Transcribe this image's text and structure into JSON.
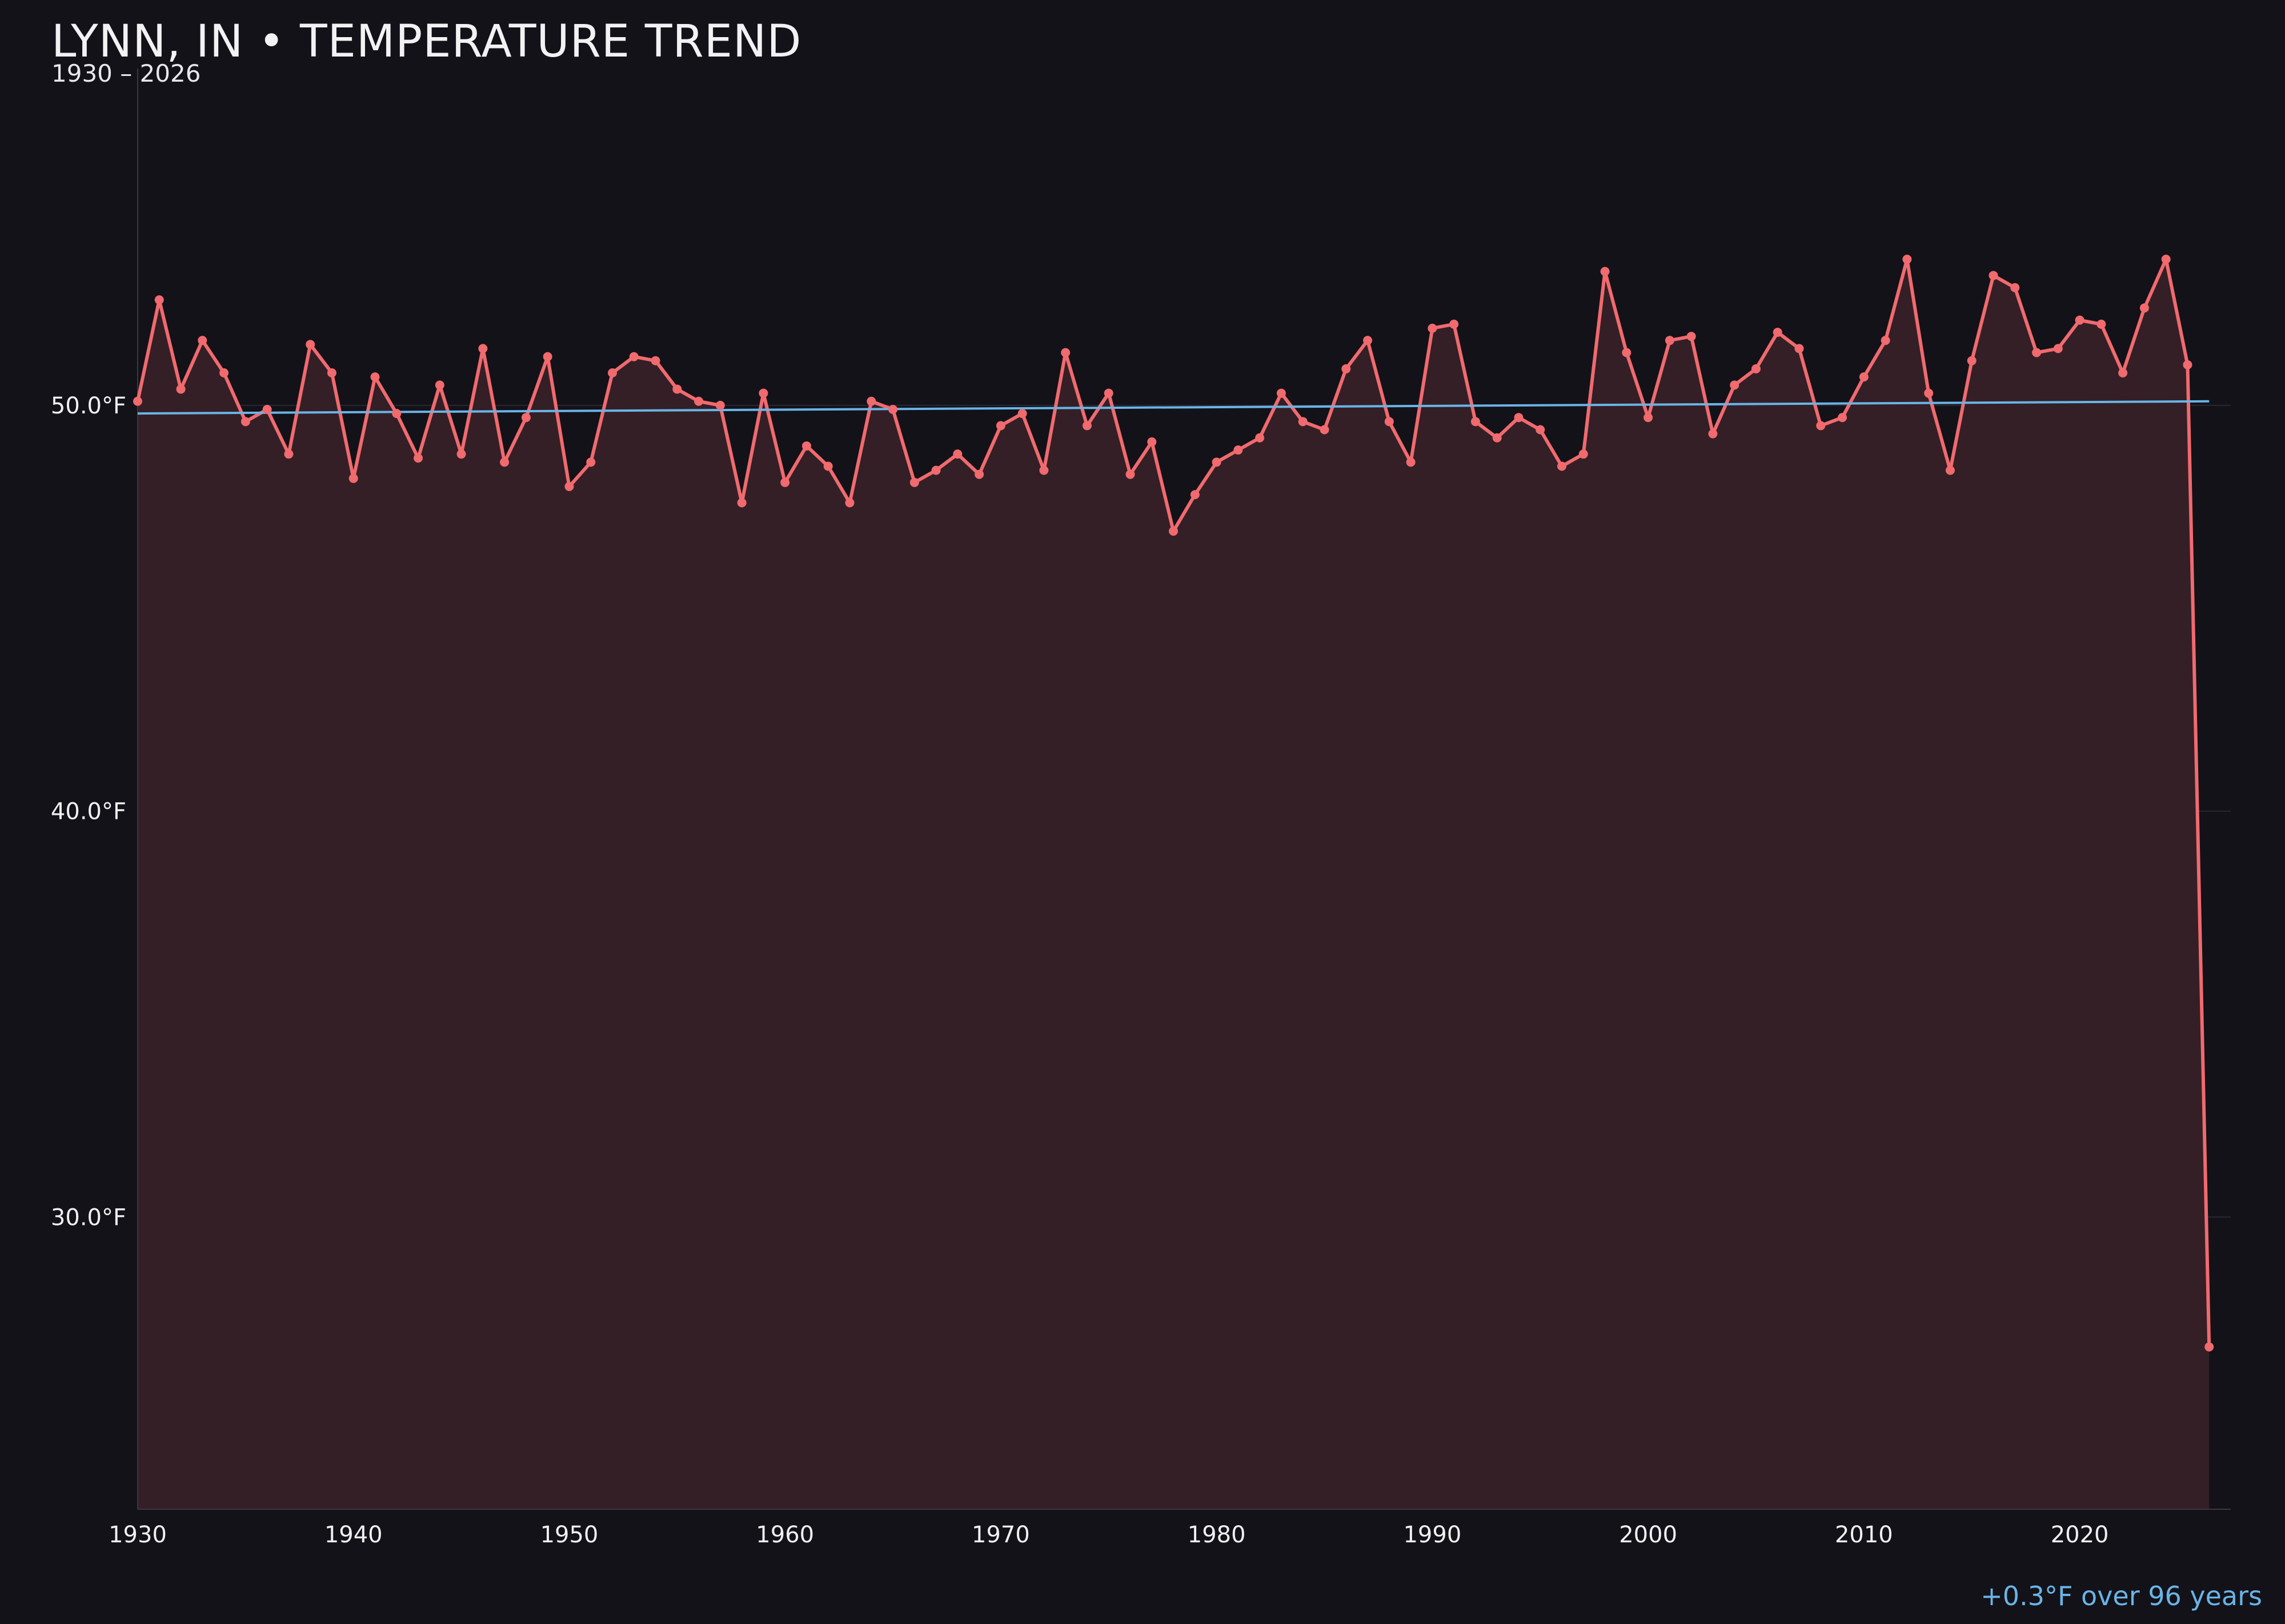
{
  "chart_data": {
    "type": "line",
    "title": "LYNN, IN • TEMPERATURE TREND",
    "subtitle": "1930 – 2026",
    "annotation": "+0.3°F over 96 years",
    "xlabel": "",
    "ylabel": "",
    "xlim": [
      1930,
      2027
    ],
    "ylim": [
      22.8,
      58.3
    ],
    "x_ticks": [
      1930,
      1940,
      1950,
      1960,
      1970,
      1980,
      1990,
      2000,
      2010,
      2020
    ],
    "x_tick_labels": [
      "1930",
      "1940",
      "1950",
      "1960",
      "1970",
      "1980",
      "1990",
      "2000",
      "2010",
      "2020"
    ],
    "y_ticks": [
      30,
      40,
      50
    ],
    "y_tick_labels": [
      "30.0°F",
      "40.0°F",
      "50.0°F"
    ],
    "grid": "horizontal",
    "colors": {
      "series": "#f06a6e",
      "trend": "#6ab4e6",
      "fill": "#341f26",
      "background": "#131219"
    },
    "x": [
      1930,
      1931,
      1932,
      1933,
      1934,
      1935,
      1936,
      1937,
      1938,
      1939,
      1940,
      1941,
      1942,
      1943,
      1944,
      1945,
      1946,
      1947,
      1948,
      1949,
      1950,
      1951,
      1952,
      1953,
      1954,
      1955,
      1956,
      1957,
      1958,
      1959,
      1960,
      1961,
      1962,
      1963,
      1964,
      1965,
      1966,
      1967,
      1968,
      1969,
      1970,
      1971,
      1972,
      1973,
      1974,
      1975,
      1976,
      1977,
      1978,
      1979,
      1980,
      1981,
      1982,
      1983,
      1984,
      1985,
      1986,
      1987,
      1988,
      1989,
      1990,
      1991,
      1992,
      1993,
      1994,
      1995,
      1996,
      1997,
      1998,
      1999,
      2000,
      2001,
      2002,
      2003,
      2004,
      2005,
      2006,
      2007,
      2008,
      2009,
      2010,
      2011,
      2012,
      2013,
      2014,
      2015,
      2016,
      2017,
      2018,
      2019,
      2020,
      2021,
      2022,
      2023,
      2024,
      2025,
      2026
    ],
    "series": [
      {
        "values": [
          50.1,
          52.6,
          50.4,
          51.6,
          50.8,
          49.6,
          49.9,
          48.8,
          51.5,
          50.8,
          48.2,
          50.7,
          49.8,
          48.7,
          50.5,
          48.8,
          51.4,
          48.6,
          49.7,
          51.2,
          48.0,
          48.6,
          50.8,
          51.2,
          51.1,
          50.4,
          50.1,
          50.0,
          47.6,
          50.3,
          48.1,
          49.0,
          48.5,
          47.6,
          50.1,
          49.9,
          48.1,
          48.4,
          48.8,
          48.3,
          49.5,
          49.8,
          48.4,
          51.3,
          49.5,
          50.3,
          48.3,
          49.1,
          46.9,
          47.8,
          48.6,
          48.9,
          49.2,
          50.3,
          49.6,
          49.4,
          50.9,
          51.6,
          49.6,
          48.6,
          51.9,
          52.0,
          49.6,
          49.2,
          49.7,
          49.4,
          48.5,
          48.8,
          53.3,
          51.3,
          49.7,
          51.6,
          51.7,
          49.3,
          50.5,
          50.9,
          51.8,
          51.4,
          49.5,
          49.7,
          50.7,
          51.6,
          53.6,
          50.3,
          48.4,
          51.1,
          53.2,
          52.9,
          51.3,
          51.4,
          52.1,
          52.0,
          50.8,
          52.4,
          53.6,
          51.0,
          26.8
        ]
      }
    ],
    "trend": {
      "x": [
        1930,
        2026
      ],
      "values": [
        49.8,
        50.1
      ]
    }
  }
}
